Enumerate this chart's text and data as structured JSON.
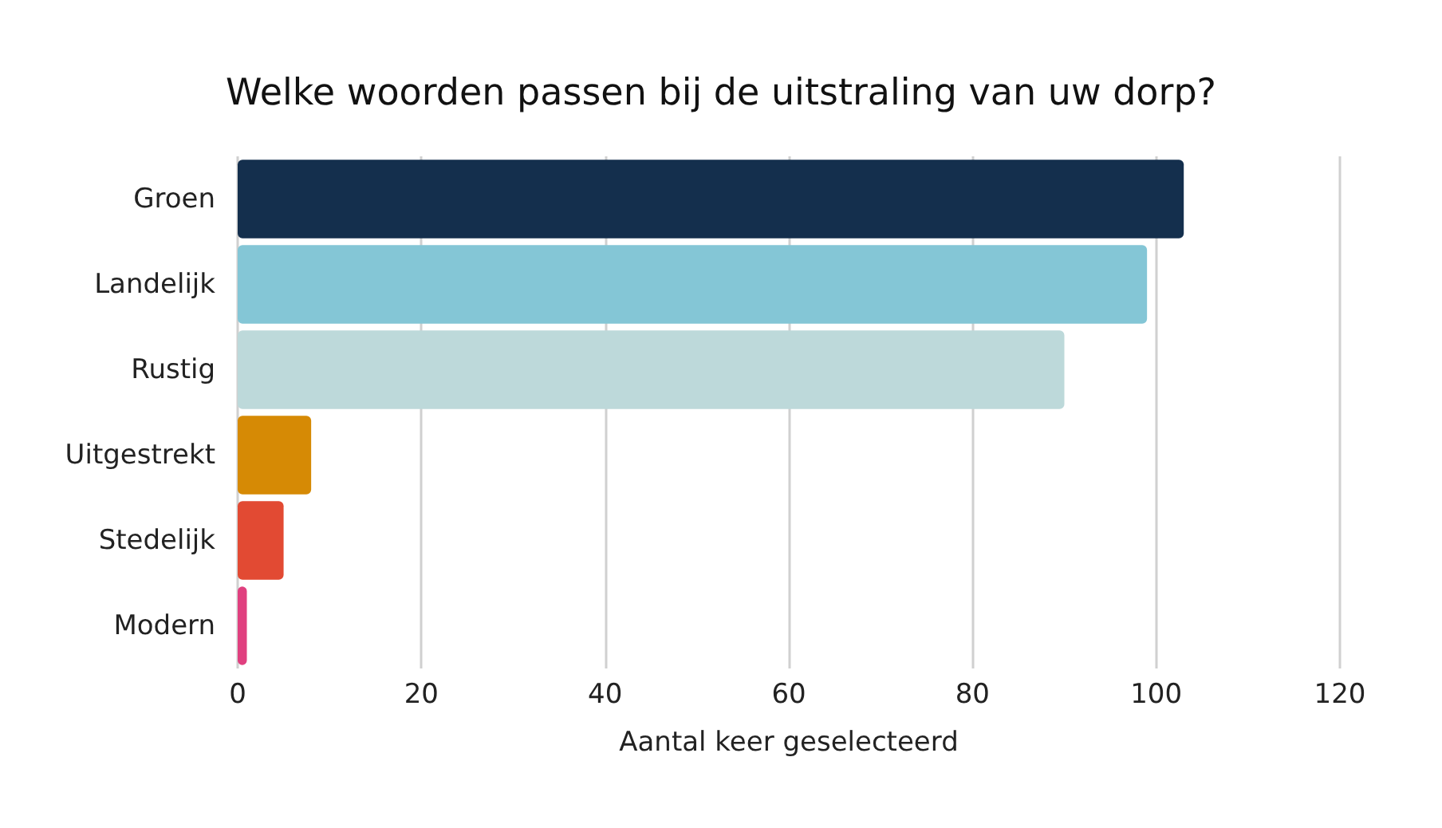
{
  "chart_data": {
    "type": "bar",
    "orientation": "horizontal",
    "title": "Welke woorden passen bij de uitstraling van uw dorp?",
    "xlabel": "Aantal keer geselecteerd",
    "categories": [
      "Groen",
      "Landelijk",
      "Rustig",
      "Uitgestrekt",
      "Stedelijk",
      "Modern"
    ],
    "values": [
      103,
      99,
      90,
      8,
      5,
      1
    ],
    "colors": [
      "#142f4d",
      "#84c6d6",
      "#bdd9da",
      "#d68a05",
      "#e24a33",
      "#e0407f"
    ],
    "xlim": [
      0,
      120
    ],
    "xticks": [
      0,
      20,
      40,
      60,
      80,
      100,
      120
    ],
    "grid": "x"
  }
}
